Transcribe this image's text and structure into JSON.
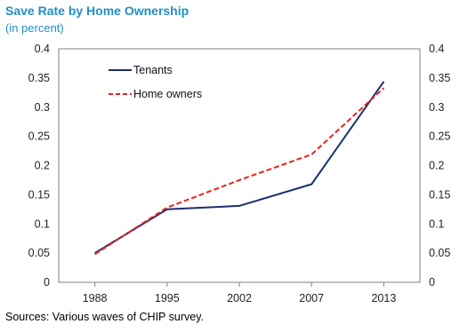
{
  "title": "Save Rate by Home Ownership",
  "subtitle": "(in percent)",
  "source": "Sources: Various waves of CHIP survey.",
  "colors": {
    "tenants": "#1b2f6e",
    "home_owners": "#e8231e",
    "title": "#1f8fc6"
  },
  "chart_data": {
    "type": "line",
    "x": [
      1988,
      1995,
      2002,
      2007,
      2013
    ],
    "x_tick_labels": [
      "1988",
      "1995",
      "2002",
      "2007",
      "2013"
    ],
    "y_tick_labels": [
      "0",
      "0.05",
      "0.1",
      "0.15",
      "0.2",
      "0.25",
      "0.3",
      "0.35",
      "0.4"
    ],
    "ylim": [
      0,
      0.4
    ],
    "grid": false,
    "legend_position": "top-left",
    "series": [
      {
        "name": "Tenants",
        "values": [
          0.05,
          0.125,
          0.131,
          0.168,
          0.344
        ],
        "style": "solid"
      },
      {
        "name": "Home owners",
        "values": [
          0.048,
          0.128,
          0.175,
          0.219,
          0.333
        ],
        "style": "dashed"
      }
    ]
  }
}
